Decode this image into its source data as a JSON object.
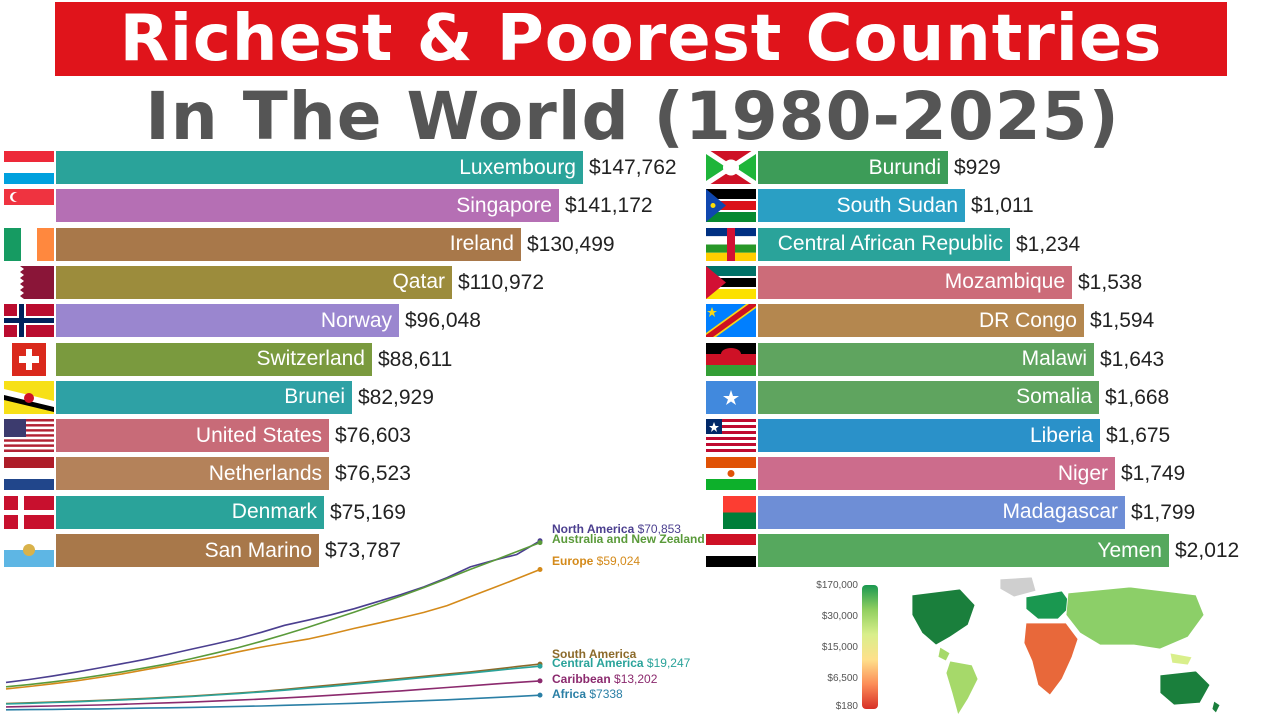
{
  "title": "Richest & Poorest Countries",
  "subtitle": "In The World (1980-2025)",
  "chart_data": [
    {
      "type": "bar",
      "categories": [
        "Luxembourg",
        "Singapore",
        "Ireland",
        "Qatar",
        "Norway",
        "Switzerland",
        "Brunei",
        "United States",
        "Netherlands",
        "Denmark",
        "San Marino"
      ],
      "values": [
        147762,
        141172,
        130499,
        110972,
        96048,
        88611,
        82929,
        76603,
        76523,
        75169,
        73787
      ],
      "value_labels": [
        "$147,762",
        "$141,172",
        "$130,499",
        "$110,972",
        "$96,048",
        "$88,611",
        "$82,929",
        "$76,603",
        "$76,523",
        "$75,169",
        "$73,787"
      ],
      "colors": [
        "#2aa39a",
        "#b56fb4",
        "#a8784a",
        "#9c8c3c",
        "#9a86cf",
        "#7a9a3e",
        "#2ea1a5",
        "#c86b78",
        "#b4825a",
        "#2aa39a",
        "#a8784a"
      ],
      "flags": [
        "luxembourg-flag",
        "singapore-flag",
        "ireland-flag",
        "qatar-flag",
        "norway-flag",
        "switzerland-flag",
        "brunei-flag",
        "united-states-flag",
        "netherlands-flag",
        "denmark-flag",
        "san-marino-flag"
      ]
    },
    {
      "type": "bar",
      "categories": [
        "Burundi",
        "South Sudan",
        "Central African Republic",
        "Mozambique",
        "DR Congo",
        "Malawi",
        "Somalia",
        "Liberia",
        "Niger",
        "Madagascar",
        "Yemen"
      ],
      "values": [
        929,
        1011,
        1234,
        1538,
        1594,
        1643,
        1668,
        1675,
        1749,
        1799,
        2012
      ],
      "value_labels": [
        "$929",
        "$1,011",
        "$1,234",
        "$1,538",
        "$1,594",
        "$1,643",
        "$1,668",
        "$1,675",
        "$1,749",
        "$1,799",
        "$2,012"
      ],
      "colors": [
        "#3d9c58",
        "#2a9fc4",
        "#2aa39a",
        "#cc6c79",
        "#b4874f",
        "#5fa45f",
        "#5fa45f",
        "#2a91c9",
        "#cc6c8c",
        "#6e8ed6",
        "#56a85e"
      ],
      "flags": [
        "burundi-flag",
        "south-sudan-flag",
        "central-african-republic-flag",
        "mozambique-flag",
        "dr-congo-flag",
        "malawi-flag",
        "somalia-flag",
        "liberia-flag",
        "niger-flag",
        "madagascar-flag",
        "yemen-flag"
      ]
    },
    {
      "type": "line",
      "series": [
        {
          "name": "North America",
          "label": "$70,853",
          "color": "#4b3f8f",
          "values": [
            12600,
            13800,
            15200,
            16800,
            18500,
            20300,
            22100,
            24100,
            26300,
            28400,
            30600,
            33200,
            36100,
            38200,
            40400,
            42900,
            45800,
            48700,
            51900,
            55700,
            60100,
            62800,
            65200,
            70853
          ]
        },
        {
          "name": "Australia and New Zealand",
          "label": "",
          "color": "#5a9a3a",
          "values": [
            10800,
            11700,
            12800,
            14000,
            15400,
            16900,
            18600,
            20300,
            22400,
            24600,
            26900,
            29500,
            32300,
            35200,
            38400,
            41500,
            44800,
            48100,
            51600,
            55300,
            59100,
            62700,
            66400,
            70100
          ]
        },
        {
          "name": "Europe",
          "label": "$59,024",
          "color": "#d48a1a",
          "values": [
            9900,
            10900,
            12000,
            13200,
            14600,
            16100,
            17800,
            19500,
            21300,
            23100,
            25200,
            27100,
            28800,
            30400,
            32500,
            34800,
            36900,
            39100,
            41400,
            44200,
            47900,
            51500,
            55200,
            59024
          ]
        },
        {
          "name": "South America",
          "label": "",
          "color": "#8c6a2a",
          "values": [
            3900,
            4200,
            4500,
            4800,
            5200,
            5600,
            6000,
            6500,
            7000,
            7600,
            8200,
            8900,
            9700,
            10600,
            11500,
            12400,
            13300,
            14200,
            15100,
            16000,
            16900,
            18000,
            19100,
            20100
          ]
        },
        {
          "name": "Central America",
          "label": "$19,247",
          "color": "#2aa39a",
          "values": [
            3700,
            4000,
            4300,
            4600,
            5000,
            5400,
            5800,
            6300,
            6800,
            7400,
            8000,
            8700,
            9400,
            10200,
            11000,
            11900,
            12800,
            13700,
            14600,
            15500,
            16400,
            17400,
            18400,
            19247
          ]
        },
        {
          "name": "Caribbean",
          "label": "$13,202",
          "color": "#8b2a6e",
          "values": [
            2500,
            2700,
            2900,
            3100,
            3300,
            3600,
            3900,
            4200,
            4500,
            4900,
            5300,
            5700,
            6200,
            6700,
            7300,
            7900,
            8500,
            9100,
            9800,
            10500,
            11200,
            11900,
            12600,
            13202
          ]
        },
        {
          "name": "Africa",
          "label": "$7338",
          "color": "#2a7fa5",
          "values": [
            1300,
            1400,
            1500,
            1600,
            1700,
            1850,
            2000,
            2150,
            2300,
            2500,
            2700,
            2900,
            3150,
            3400,
            3700,
            4000,
            4350,
            4700,
            5050,
            5450,
            5900,
            6350,
            6850,
            7338
          ]
        }
      ]
    }
  ],
  "map_legend": {
    "ticks": [
      "$170,000",
      "$30,000",
      "$15,000",
      "$6,500",
      "$180"
    ],
    "colors": [
      "#1a9850",
      "#91cf60",
      "#d9ef8b",
      "#fee08b",
      "#fc8d59",
      "#d73027"
    ]
  }
}
